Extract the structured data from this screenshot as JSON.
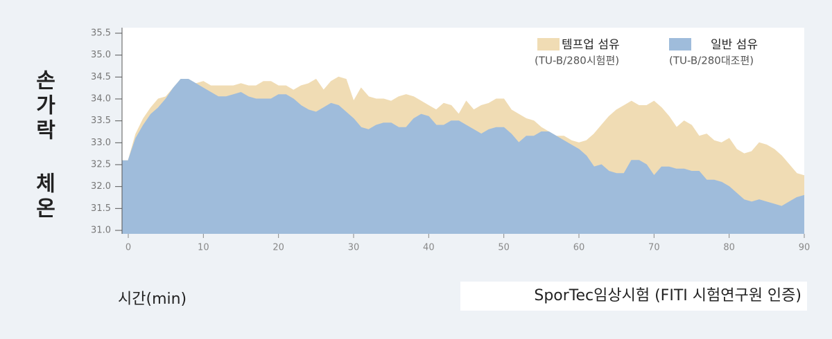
{
  "chart_data": {
    "type": "area",
    "y_label": "손가락 체온",
    "x_label": "시간(min)",
    "source": "SporTec임상시험 (FITI 시험연구원 인증)",
    "x": [
      0,
      1,
      2,
      3,
      4,
      5,
      6,
      7,
      8,
      9,
      10,
      11,
      12,
      13,
      14,
      15,
      16,
      17,
      18,
      19,
      20,
      21,
      22,
      23,
      24,
      25,
      26,
      27,
      28,
      29,
      30,
      31,
      32,
      33,
      34,
      35,
      36,
      37,
      38,
      39,
      40,
      41,
      42,
      43,
      44,
      45,
      46,
      47,
      48,
      49,
      50,
      51,
      52,
      53,
      54,
      55,
      56,
      57,
      58,
      59,
      60,
      61,
      62,
      63,
      64,
      65,
      66,
      67,
      68,
      69,
      70,
      71,
      72,
      73,
      74,
      75,
      76,
      77,
      78,
      79,
      80,
      81,
      82,
      83,
      84,
      85,
      86,
      87,
      88,
      89,
      90
    ],
    "series": [
      {
        "name": "템프업 섬유",
        "sample": "(TU-B/280시험편)",
        "color": "#f0dcb4",
        "values": [
          32.6,
          33.2,
          33.55,
          33.8,
          34.0,
          34.05,
          34.25,
          34.45,
          34.45,
          34.35,
          34.4,
          34.3,
          34.3,
          34.3,
          34.3,
          34.35,
          34.3,
          34.3,
          34.4,
          34.4,
          34.3,
          34.3,
          34.2,
          34.3,
          34.35,
          34.45,
          34.2,
          34.4,
          34.5,
          34.45,
          33.95,
          34.25,
          34.05,
          34.0,
          34.0,
          33.95,
          34.05,
          34.1,
          34.05,
          33.95,
          33.85,
          33.75,
          33.9,
          33.85,
          33.65,
          33.95,
          33.75,
          33.85,
          33.9,
          34.0,
          34.0,
          33.75,
          33.65,
          33.55,
          33.5,
          33.35,
          33.25,
          33.15,
          33.15,
          33.05,
          33.0,
          33.05,
          33.2,
          33.4,
          33.6,
          33.75,
          33.85,
          33.95,
          33.85,
          33.85,
          33.95,
          33.8,
          33.6,
          33.35,
          33.5,
          33.4,
          33.15,
          33.2,
          33.05,
          33.0,
          33.1,
          32.85,
          32.75,
          32.8,
          33.0,
          32.95,
          32.85,
          32.7,
          32.5,
          32.3,
          32.25
        ]
      },
      {
        "name": "일반 섬유",
        "sample": "(TU-B/280대조편)",
        "color": "#9fbcdb",
        "values": [
          32.6,
          33.1,
          33.4,
          33.65,
          33.8,
          34.0,
          34.25,
          34.45,
          34.45,
          34.35,
          34.25,
          34.15,
          34.05,
          34.05,
          34.1,
          34.15,
          34.05,
          34.0,
          34.0,
          34.0,
          34.1,
          34.1,
          34.0,
          33.85,
          33.75,
          33.7,
          33.8,
          33.9,
          33.85,
          33.7,
          33.55,
          33.35,
          33.3,
          33.4,
          33.45,
          33.45,
          33.35,
          33.35,
          33.55,
          33.65,
          33.6,
          33.4,
          33.4,
          33.5,
          33.5,
          33.4,
          33.3,
          33.2,
          33.3,
          33.35,
          33.35,
          33.2,
          33.0,
          33.15,
          33.15,
          33.25,
          33.25,
          33.15,
          33.05,
          32.95,
          32.85,
          32.7,
          32.45,
          32.5,
          32.35,
          32.3,
          32.3,
          32.6,
          32.6,
          32.5,
          32.25,
          32.45,
          32.45,
          32.4,
          32.4,
          32.35,
          32.35,
          32.15,
          32.15,
          32.1,
          32.0,
          31.85,
          31.7,
          31.65,
          31.7,
          31.65,
          31.6,
          31.55,
          31.65,
          31.75,
          31.8
        ]
      }
    ],
    "xlim": [
      0,
      90
    ],
    "xticks": [
      0,
      10,
      20,
      30,
      40,
      50,
      60,
      70,
      80,
      90
    ],
    "ylim": [
      31,
      35.5
    ],
    "yticks": [
      {
        "value": 31,
        "label": "31.0"
      },
      {
        "value": 31.5,
        "label": "31.5"
      },
      {
        "value": 32,
        "label": "32.0"
      },
      {
        "value": 32.5,
        "label": "32.5"
      },
      {
        "value": 33,
        "label": "33.0"
      },
      {
        "value": 33.5,
        "label": "33.5"
      },
      {
        "value": 34,
        "label": "34.0"
      },
      {
        "value": 34.5,
        "label": "34.5"
      },
      {
        "value": 35,
        "label": "35.0"
      },
      {
        "value": 35.5,
        "label": "35.5"
      }
    ],
    "grid": false,
    "legend": "top-right"
  }
}
